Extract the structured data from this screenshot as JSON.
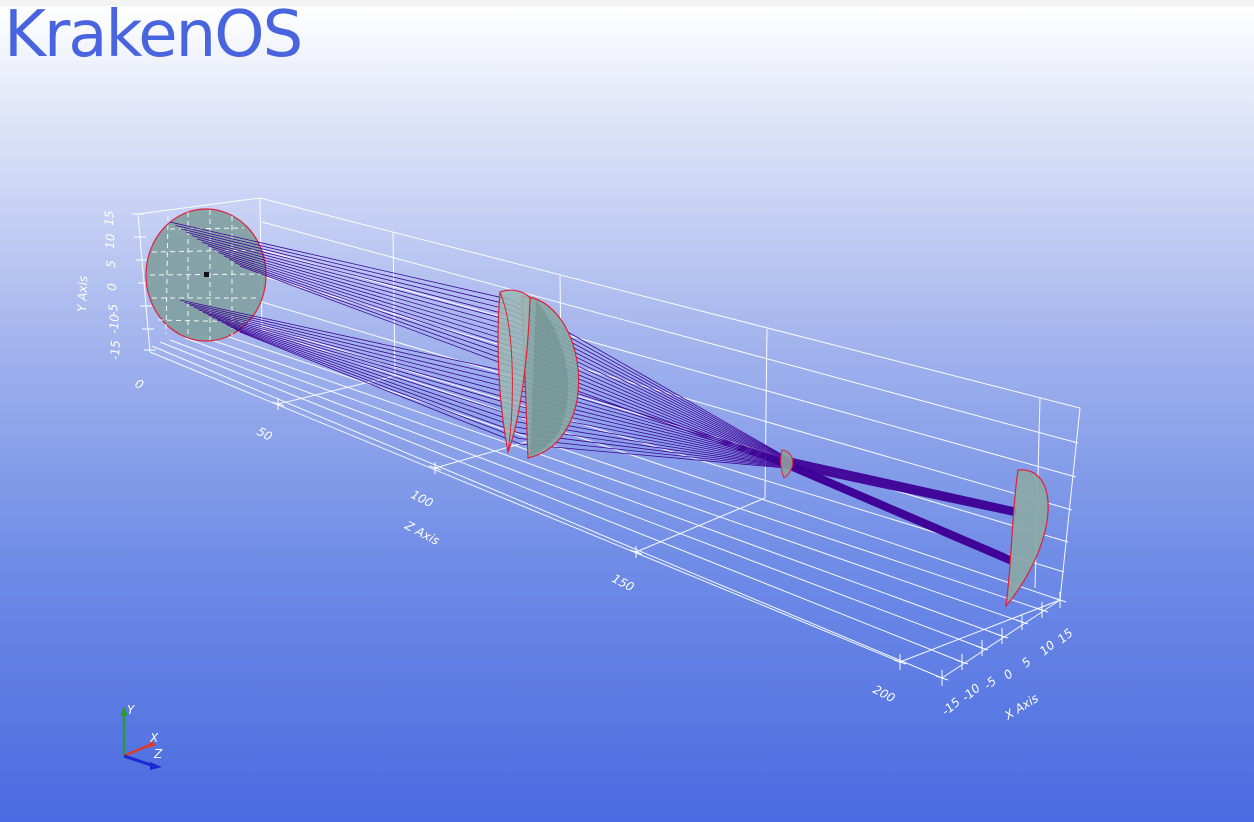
{
  "app": {
    "title": "KrakenOS"
  },
  "scene": {
    "axes": {
      "y_label": "Y Axis",
      "z_label": "Z Axis",
      "x_label": "X Axis",
      "y_ticks": [
        "15",
        "10",
        "5",
        "0",
        "-5",
        "-10",
        "-15"
      ],
      "z_ticks": [
        "0",
        "50",
        "100",
        "150",
        "200"
      ],
      "x_ticks": [
        "-15",
        "-10",
        "-5",
        "0",
        "5",
        "10",
        "15"
      ]
    },
    "triad": {
      "x": "X",
      "y": "Y",
      "z": "Z"
    },
    "colors": {
      "rays": "#3f0096",
      "grid": "#ffffff",
      "lens_fill": "#8aa9a6",
      "lens_edge": "#e0203a",
      "triad_x": "#e03a2a",
      "triad_y": "#2a9a3a",
      "triad_z": "#1a2ad0"
    },
    "elements": [
      "aperture",
      "doublet-lens",
      "image-surface"
    ]
  }
}
